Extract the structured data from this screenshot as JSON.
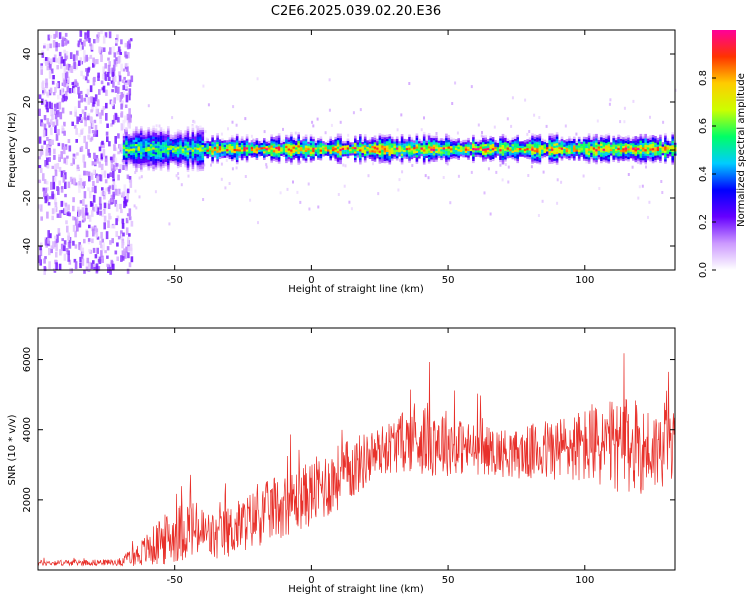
{
  "title": "C2E6.2025.039.02.20.E36",
  "chart_data": [
    {
      "type": "heatmap",
      "xlabel": "Height of straight line (km)",
      "ylabel": "Frequency (Hz)",
      "xlim": [
        -100,
        133
      ],
      "ylim": [
        -50,
        50
      ],
      "x_ticks": [
        -50,
        0,
        50,
        100
      ],
      "y_ticks": [
        -40,
        -20,
        0,
        20,
        40
      ],
      "colorbar": {
        "label": "Normalized spectral amplitude",
        "range": [
          0.0,
          1.0
        ],
        "ticks": [
          0.0,
          0.2,
          0.4,
          0.6,
          0.8
        ],
        "colormap": [
          "#ffffff",
          "#cc99ff",
          "#6600ff",
          "#0000ff",
          "#00ccff",
          "#00ff66",
          "#ccff00",
          "#ffcc00",
          "#ff3300",
          "#ff0099"
        ]
      },
      "description_values": {
        "noise_region_x": [
          -100,
          -68
        ],
        "signal_band_center_hz": 0,
        "signal_band_halfwidth_hz": 3
      }
    },
    {
      "type": "line",
      "xlabel": "Height of straight line (km)",
      "ylabel": "SNR (10 * v/v)",
      "xlim": [
        -100,
        133
      ],
      "ylim": [
        0,
        6900
      ],
      "x_ticks": [
        -50,
        0,
        50,
        100
      ],
      "y_ticks": [
        2000,
        4000,
        6000
      ],
      "line_color": "#e8302a",
      "envelope": {
        "x": [
          -100,
          -70,
          -62,
          -55,
          -45,
          -35,
          -25,
          -15,
          -5,
          5,
          15,
          25,
          35,
          45,
          55,
          65,
          75,
          85,
          95,
          105,
          115,
          125,
          133
        ],
        "mean": [
          200,
          220,
          500,
          800,
          1200,
          900,
          1300,
          1700,
          2000,
          2400,
          2900,
          3400,
          3700,
          3750,
          3500,
          3400,
          3300,
          3400,
          3500,
          3550,
          3500,
          3400,
          3600
        ],
        "amp": [
          80,
          90,
          400,
          700,
          900,
          700,
          800,
          900,
          900,
          1000,
          900,
          700,
          900,
          1100,
          800,
          700,
          700,
          900,
          1000,
          1200,
          1400,
          1200,
          1000
        ]
      }
    }
  ]
}
